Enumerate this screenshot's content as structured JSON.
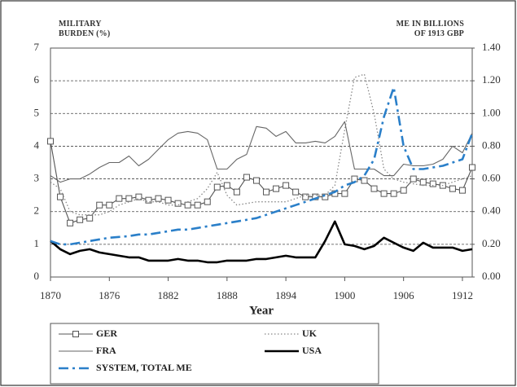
{
  "chart_data": {
    "type": "line",
    "y_label": "MILITARY BURDEN (%)",
    "y2_label": "ME IN BILLIONS OF 1913 GBP",
    "x_label": "Year",
    "x": [
      1870,
      1871,
      1872,
      1873,
      1874,
      1875,
      1876,
      1877,
      1878,
      1879,
      1880,
      1881,
      1882,
      1883,
      1884,
      1885,
      1886,
      1887,
      1888,
      1889,
      1890,
      1891,
      1892,
      1893,
      1894,
      1895,
      1896,
      1897,
      1898,
      1899,
      1900,
      1901,
      1902,
      1903,
      1904,
      1905,
      1906,
      1907,
      1908,
      1909,
      1910,
      1911,
      1912,
      1913
    ],
    "xlim": [
      1870,
      1913
    ],
    "xticks": [
      1870,
      1876,
      1882,
      1888,
      1894,
      1900,
      1906,
      1912
    ],
    "ylim": [
      0,
      7
    ],
    "yticks": [
      0,
      1,
      2,
      3,
      4,
      5,
      6,
      7
    ],
    "y2lim": [
      0,
      1.4
    ],
    "y2ticks": [
      {
        "value": 0,
        "label": "0.00"
      },
      {
        "value": 0.2,
        "label": "0.20"
      },
      {
        "value": 0.4,
        "label": "0.40"
      },
      {
        "value": 0.6,
        "label": "0.60"
      },
      {
        "value": 0.8,
        "label": "0.80"
      },
      {
        "value": 1.0,
        "label": "1.00"
      },
      {
        "value": 1.2,
        "label": "1.20"
      },
      {
        "value": 1.4,
        "label": "1.40"
      }
    ],
    "grid": true,
    "legend": "bottom",
    "series": [
      {
        "name": "GER",
        "color": "#555555",
        "line_style": "solid",
        "marker": "square",
        "values": [
          4.15,
          2.45,
          1.65,
          1.75,
          1.8,
          2.2,
          2.2,
          2.4,
          2.4,
          2.45,
          2.35,
          2.4,
          2.35,
          2.25,
          2.2,
          2.2,
          2.3,
          2.75,
          2.8,
          2.6,
          3.05,
          2.95,
          2.6,
          2.7,
          2.8,
          2.6,
          2.45,
          2.45,
          2.45,
          2.55,
          2.55,
          3.0,
          2.95,
          2.7,
          2.55,
          2.55,
          2.65,
          3.0,
          2.9,
          2.85,
          2.8,
          2.7,
          2.65,
          3.35
        ]
      },
      {
        "name": "UK",
        "color": "#888888",
        "line_style": "dotted",
        "values": [
          2.9,
          2.7,
          2.0,
          1.9,
          1.9,
          1.9,
          2.0,
          2.2,
          2.3,
          2.4,
          2.3,
          2.3,
          2.2,
          2.2,
          2.3,
          2.4,
          2.7,
          3.2,
          2.5,
          2.2,
          2.25,
          2.3,
          2.3,
          2.3,
          2.3,
          2.4,
          2.5,
          2.5,
          2.5,
          2.8,
          4.5,
          6.1,
          6.2,
          5.0,
          3.3,
          3.0,
          2.9,
          2.85,
          2.8,
          2.8,
          2.8,
          2.9,
          3.0,
          3.1
        ]
      },
      {
        "name": "FRA",
        "color": "#666666",
        "line_style": "solid",
        "values": [
          3.1,
          2.9,
          3.0,
          3.0,
          3.15,
          3.35,
          3.5,
          3.5,
          3.7,
          3.4,
          3.6,
          3.9,
          4.2,
          4.4,
          4.45,
          4.4,
          4.2,
          3.3,
          3.3,
          3.6,
          3.75,
          4.6,
          4.55,
          4.3,
          4.45,
          4.1,
          4.1,
          4.15,
          4.1,
          4.3,
          4.75,
          3.3,
          3.3,
          3.3,
          3.1,
          3.1,
          3.45,
          3.4,
          3.4,
          3.45,
          3.6,
          4.0,
          3.8,
          4.4
        ]
      },
      {
        "name": "USA",
        "color": "#000000",
        "line_style": "thick",
        "values": [
          1.1,
          0.85,
          0.7,
          0.8,
          0.85,
          0.75,
          0.7,
          0.65,
          0.6,
          0.6,
          0.5,
          0.5,
          0.5,
          0.55,
          0.5,
          0.5,
          0.45,
          0.45,
          0.5,
          0.5,
          0.5,
          0.55,
          0.55,
          0.6,
          0.65,
          0.6,
          0.6,
          0.6,
          1.1,
          1.7,
          1.0,
          0.95,
          0.85,
          0.95,
          1.2,
          1.05,
          0.9,
          0.8,
          1.05,
          0.9,
          0.9,
          0.9,
          0.8,
          0.85
        ]
      },
      {
        "name": "SYSTEM, TOTAL ME",
        "color": "#2a7fc9",
        "line_style": "dashdot",
        "axis": "y2",
        "values": [
          0.22,
          0.2,
          0.2,
          0.21,
          0.22,
          0.23,
          0.24,
          0.245,
          0.25,
          0.26,
          0.26,
          0.27,
          0.28,
          0.29,
          0.29,
          0.3,
          0.31,
          0.32,
          0.33,
          0.34,
          0.35,
          0.36,
          0.38,
          0.4,
          0.42,
          0.44,
          0.46,
          0.48,
          0.5,
          0.52,
          0.56,
          0.58,
          0.62,
          0.72,
          0.98,
          1.16,
          0.8,
          0.66,
          0.66,
          0.67,
          0.68,
          0.7,
          0.72,
          0.88
        ]
      }
    ]
  }
}
